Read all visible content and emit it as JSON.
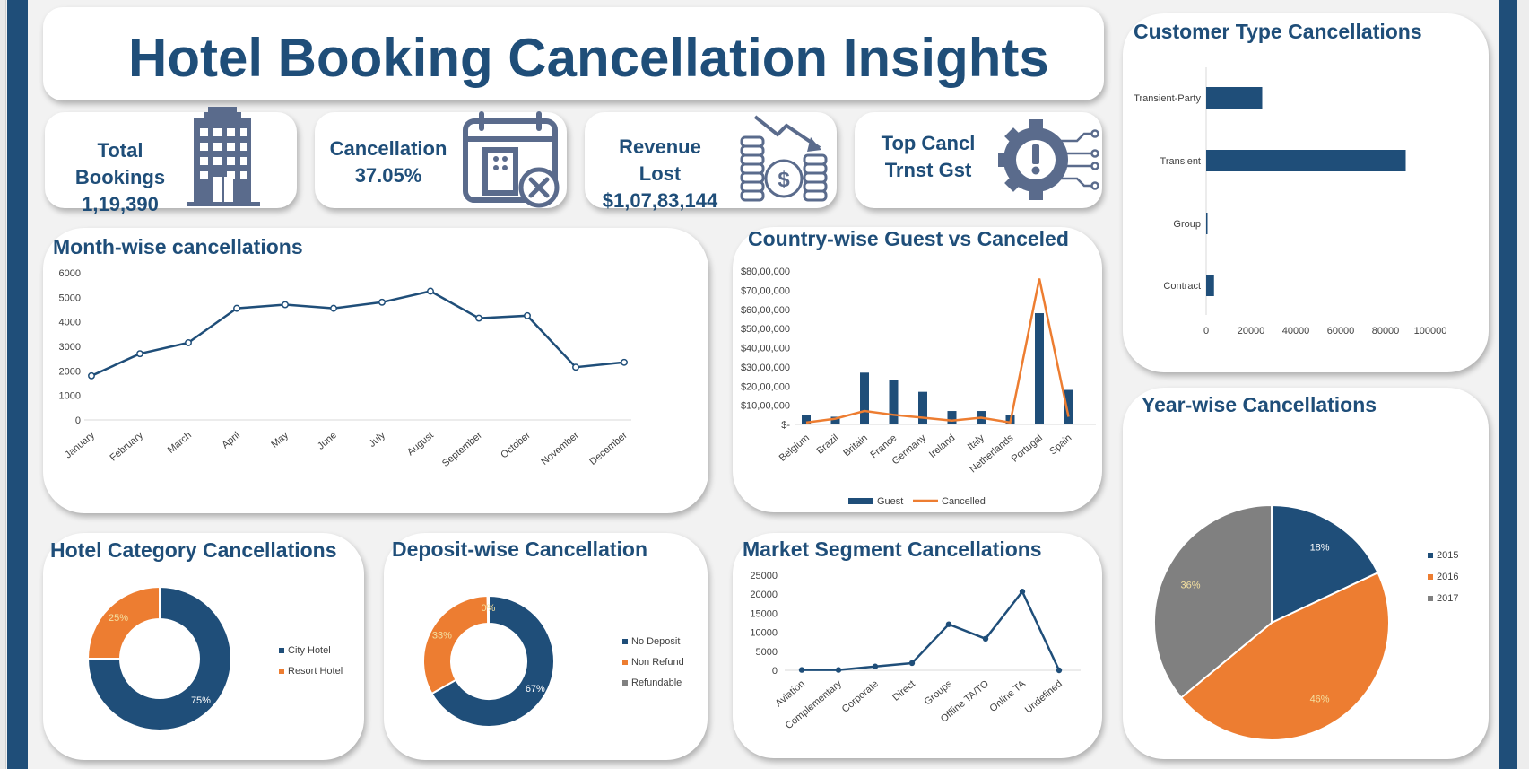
{
  "dashboard": {
    "title": "Hotel Booking Cancellation Insights"
  },
  "kpis": [
    {
      "label": "Total Bookings",
      "value": "1,19,390",
      "icon": "hotel-building-icon"
    },
    {
      "label": "Cancellation",
      "value": "37.05%",
      "icon": "calendar-cancel-icon"
    },
    {
      "label": "Revenue Lost",
      "value": "$1,07,83,144",
      "icon": "money-down-icon"
    },
    {
      "label": "Top Cancl",
      "value": "Trnst Gst",
      "icon": "gear-alert-icon"
    }
  ],
  "colors": {
    "navy": "#1f4e79",
    "orange": "#ed7d31",
    "grey": "#808080",
    "white": "#ffffff"
  },
  "chart_data": [
    {
      "id": "month",
      "type": "line",
      "title": "Month-wise cancellations",
      "categories": [
        "January",
        "February",
        "March",
        "April",
        "May",
        "June",
        "July",
        "August",
        "September",
        "October",
        "November",
        "December"
      ],
      "values": [
        1800,
        2700,
        3150,
        4550,
        4700,
        4550,
        4800,
        5250,
        4150,
        4250,
        2150,
        2350
      ],
      "ylim": [
        0,
        6000
      ],
      "yticks": [
        "0",
        "1000",
        "2000",
        "3000",
        "4000",
        "5000",
        "6000"
      ]
    },
    {
      "id": "country",
      "type": "bar",
      "title": "Country-wise Guest vs Canceled",
      "categories": [
        "Belgium",
        "Brazil",
        "Britain",
        "France",
        "Germany",
        "Ireland",
        "Italy",
        "Netherlands",
        "Portugal",
        "Spain"
      ],
      "series": [
        {
          "name": "Guest",
          "type": "bar",
          "values": [
            500000,
            400000,
            2700000,
            2300000,
            1700000,
            700000,
            700000,
            500000,
            5800000,
            1800000
          ]
        },
        {
          "name": "Cancelled",
          "type": "line",
          "values": [
            100000,
            300000,
            700000,
            500000,
            350000,
            200000,
            350000,
            100000,
            7600000,
            400000
          ]
        }
      ],
      "ylim": [
        0,
        8000000
      ],
      "yticks": [
        "$-",
        "$10,00,000",
        "$20,00,000",
        "$30,00,000",
        "$40,00,000",
        "$50,00,000",
        "$60,00,000",
        "$70,00,000",
        "$80,00,000"
      ]
    },
    {
      "id": "customer",
      "type": "bar",
      "title": "Customer Type Cancellations",
      "categories": [
        "Transient-Party",
        "Transient",
        "Group",
        "Contract"
      ],
      "values": [
        25000,
        89000,
        500,
        3500
      ],
      "xlim": [
        0,
        100000
      ],
      "xticks": [
        "0",
        "20000",
        "40000",
        "60000",
        "80000",
        "100000"
      ]
    },
    {
      "id": "hotel",
      "type": "pie",
      "title": "Hotel Category Cancellations",
      "labels": [
        "City Hotel",
        "Resort Hotel"
      ],
      "values": [
        75,
        25
      ],
      "value_labels": [
        "75%",
        "25%"
      ]
    },
    {
      "id": "deposit",
      "type": "pie",
      "title": "Deposit-wise Cancellation",
      "labels": [
        "No Deposit",
        "Non Refund",
        "Refundable"
      ],
      "values": [
        67,
        33,
        0.3
      ],
      "value_labels": [
        "67%",
        "33%",
        "0%"
      ]
    },
    {
      "id": "market",
      "type": "line",
      "title": "Market Segment Cancellations",
      "categories": [
        "Aviation",
        "Complementary",
        "Corporate",
        "Direct",
        "Groups",
        "Offline TA/TO",
        "Online TA",
        "Undefined"
      ],
      "values": [
        100,
        100,
        1000,
        1900,
        12100,
        8300,
        20700,
        0
      ],
      "ylim": [
        0,
        25000
      ],
      "yticks": [
        "0",
        "5000",
        "10000",
        "15000",
        "20000",
        "25000"
      ]
    },
    {
      "id": "year",
      "type": "pie",
      "title": "Year-wise Cancellations",
      "labels": [
        "2015",
        "2016",
        "2017"
      ],
      "values": [
        18,
        46,
        36
      ],
      "value_labels": [
        "18%",
        "46%",
        "36%"
      ]
    }
  ]
}
